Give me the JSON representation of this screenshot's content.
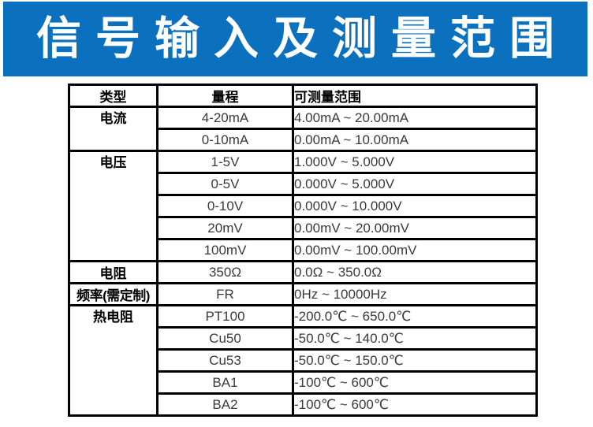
{
  "banner": {
    "title": "信号输入及测量范围",
    "bg_color": "#0b70bd",
    "text_color": "#ffffff"
  },
  "table": {
    "headers": {
      "type": "类型",
      "range": "量程",
      "measurable": "可测量范围"
    },
    "rows": [
      {
        "type": "电流",
        "type_rowspan": 2,
        "range": "4-20mA",
        "measurable": "4.00mA  ~  20.00mA"
      },
      {
        "range": "0-10mA",
        "measurable": "0.00mA  ~  10.00mA"
      },
      {
        "type": "电压",
        "type_rowspan": 5,
        "range": "1-5V",
        "measurable": "1.000V  ~  5.000V"
      },
      {
        "range": "0-5V",
        "measurable": "0.000V  ~  5.000V"
      },
      {
        "range": "0-10V",
        "measurable": "0.000V  ~  10.000V"
      },
      {
        "range": "20mV",
        "measurable": "0.00mV  ~  20.00mV"
      },
      {
        "range": "100mV",
        "measurable": "0.00mV  ~  100.00mV"
      },
      {
        "type": "电阻",
        "type_rowspan": 1,
        "range": "350Ω",
        "measurable": "0.0Ω  ~  350.0Ω"
      },
      {
        "type": "频率(需定制)",
        "type_rowspan": 1,
        "range": "FR",
        "measurable": "0Hz  ~  10000Hz"
      },
      {
        "type": "热电阻",
        "type_rowspan": 5,
        "range": "PT100",
        "measurable": "-200.0℃  ~  650.0℃"
      },
      {
        "range": "Cu50",
        "measurable": "-50.0℃  ~  140.0℃"
      },
      {
        "range": "Cu53",
        "measurable": "-50.0℃  ~  150.0℃"
      },
      {
        "range": "BA1",
        "measurable": "-100℃  ~  600℃"
      },
      {
        "range": "BA2",
        "measurable": "-100℃  ~  600℃"
      }
    ]
  }
}
